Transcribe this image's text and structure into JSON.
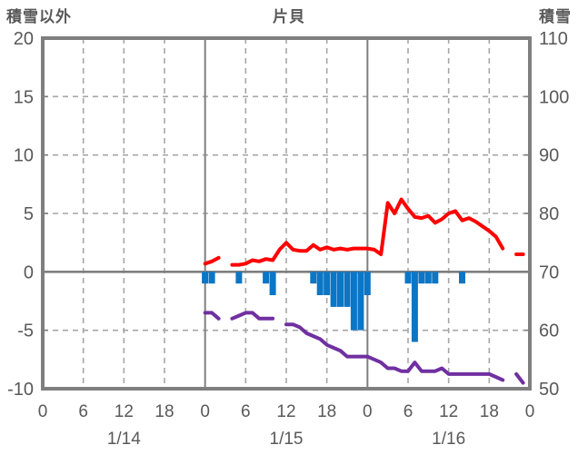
{
  "titles": {
    "left": "積雪以外",
    "center": "片貝",
    "right": "積雪"
  },
  "colors": {
    "red_line": "#fe0000",
    "purple_line": "#7030a0",
    "blue_bars": "#0b76c6",
    "grid": "#a6a6a6",
    "axis": "#7f7f7f",
    "text": "#595959",
    "background": "#ffffff"
  },
  "chart_data": {
    "type": "line+bar",
    "title": "片貝",
    "x_axis": {
      "unit": "hour",
      "range_hours": [
        0,
        72
      ],
      "tick_hours": [
        0,
        6,
        12,
        18,
        24,
        30,
        36,
        42,
        48,
        54,
        60,
        66,
        72
      ],
      "tick_labels": [
        "0",
        "6",
        "12",
        "18",
        "0",
        "6",
        "12",
        "18",
        "0",
        "6",
        "12",
        "18",
        "0"
      ],
      "date_labels": [
        "1/14",
        "1/15",
        "1/16"
      ],
      "date_center_hours": [
        12,
        36,
        60
      ]
    },
    "y_left": {
      "title": "積雪以外",
      "range": [
        -10,
        20
      ],
      "ticks": [
        20,
        15,
        10,
        5,
        0,
        -5,
        -10
      ]
    },
    "y_right": {
      "title": "積雪",
      "range": [
        50,
        110
      ],
      "ticks": [
        110,
        100,
        90,
        80,
        70,
        60,
        50
      ]
    },
    "grid": {
      "h_dashed_left_values": [
        15,
        10,
        5,
        -5
      ],
      "zero_line_left_value": 0,
      "v_dashed_hours": [
        6,
        12,
        18,
        30,
        36,
        42,
        54,
        60,
        66
      ],
      "v_solid_hours": [
        24,
        48
      ]
    },
    "legend": "none",
    "series": [
      {
        "id": "red_line",
        "type": "line",
        "axis": "left",
        "color": "#fe0000",
        "start_hour": 24,
        "step_hours": 1,
        "values": [
          0.7,
          0.9,
          1.2,
          null,
          0.6,
          0.6,
          0.7,
          1.0,
          0.9,
          1.1,
          1.0,
          1.9,
          2.5,
          1.9,
          1.8,
          1.8,
          2.3,
          1.9,
          2.1,
          1.9,
          2.0,
          1.9,
          2.0,
          2.0,
          2.0,
          1.9,
          1.5,
          5.9,
          5.0,
          6.2,
          5.4,
          4.7,
          4.6,
          4.8,
          4.2,
          4.5,
          5.0,
          5.2,
          4.4,
          4.6,
          4.3,
          3.9,
          3.5,
          3.0,
          2.0,
          null,
          1.5,
          1.5
        ]
      },
      {
        "id": "blue_bars",
        "type": "bar",
        "axis": "left",
        "color": "#0b76c6",
        "bar_width_hours": 1,
        "bars": [
          [
            24,
            -1
          ],
          [
            25,
            -1
          ],
          [
            29,
            -1
          ],
          [
            33,
            -1
          ],
          [
            34,
            -2
          ],
          [
            40,
            -1
          ],
          [
            41,
            -2
          ],
          [
            42,
            -2
          ],
          [
            43,
            -3
          ],
          [
            44,
            -3
          ],
          [
            45,
            -3
          ],
          [
            46,
            -5
          ],
          [
            47,
            -5
          ],
          [
            48,
            -2
          ],
          [
            54,
            -1
          ],
          [
            55,
            -6
          ],
          [
            56,
            -1
          ],
          [
            57,
            -1
          ],
          [
            58,
            -1
          ],
          [
            62,
            -1
          ]
        ]
      },
      {
        "id": "purple_line",
        "type": "line",
        "axis": "right",
        "color": "#7030a0",
        "start_hour": 24,
        "step_hours": 1,
        "values": [
          63,
          63,
          62,
          null,
          62,
          62.5,
          63,
          63,
          62,
          62,
          62,
          null,
          61,
          61,
          60.5,
          59.5,
          59,
          58.5,
          57.5,
          57,
          56.5,
          55.5,
          55.5,
          55.5,
          55.5,
          55,
          54.5,
          53.5,
          53.5,
          53,
          53,
          54.5,
          53,
          53,
          53,
          53.5,
          52.5,
          52.5,
          52.5,
          52.5,
          52.5,
          52.5,
          52.5,
          52,
          51.5,
          null,
          52.5,
          51
        ]
      }
    ]
  }
}
